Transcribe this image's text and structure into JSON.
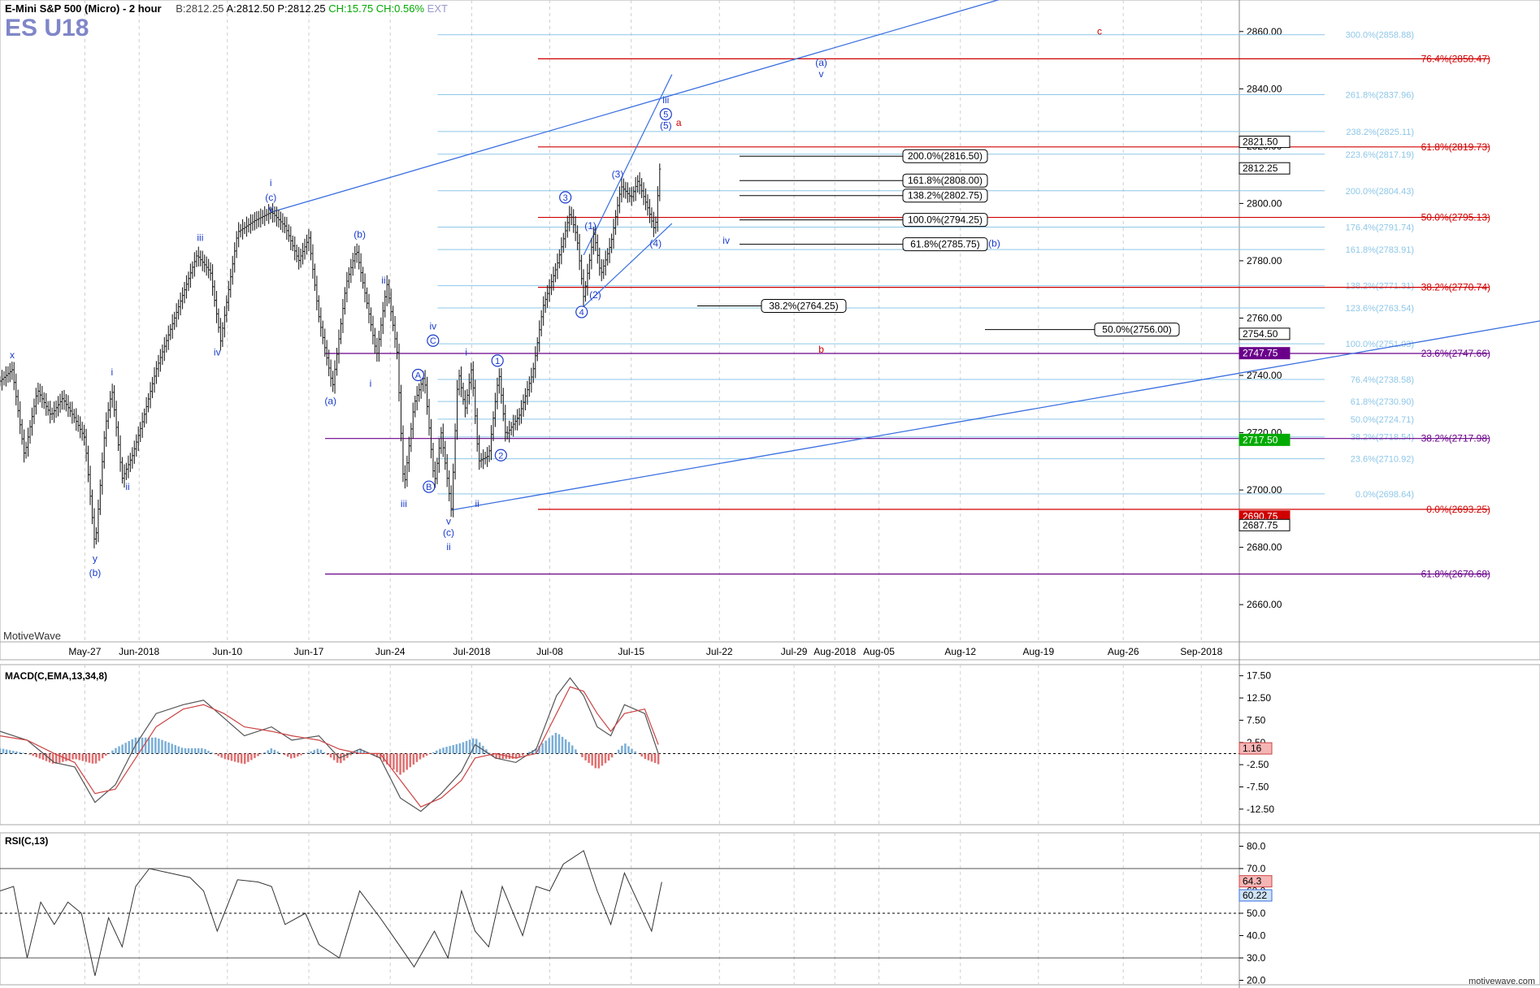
{
  "header": {
    "symbol": "E-Mini S&P 500 (Micro) - 2 hour",
    "bid": "B:2812.25",
    "ask": "A:2812.50",
    "price": "P:2812.25",
    "change": "CH:15.75",
    "change_pct": "CH:0.56%",
    "ext": "EXT",
    "contract": "ES U18"
  },
  "branding": {
    "app": "MotiveWave",
    "watermark": "motivewave.com"
  },
  "colors": {
    "wave": "#1a3ccc",
    "bar": "#222",
    "fib_light": "#8ec7e8",
    "fib_red": "#d00000",
    "fib_purple": "#6a008a",
    "hist_up": "#7aaed6",
    "hist_dn": "#e07070"
  },
  "chart_data": [
    {
      "type": "line",
      "title": "E-Mini S&P 500 (Micro) - 2 hour",
      "ylim": [
        2647,
        2871
      ],
      "y_ticks": [
        2660,
        2680,
        2700,
        2720,
        2740,
        2760,
        2780,
        2800,
        2820,
        2840,
        2860
      ],
      "x_ticks": [
        {
          "label": "May-27",
          "t": 0.125
        },
        {
          "label": "Jun-2018",
          "t": 0.205
        },
        {
          "label": "Jun-10",
          "t": 0.335
        },
        {
          "label": "Jun-17",
          "t": 0.455
        },
        {
          "label": "Jun-24",
          "t": 0.575
        },
        {
          "label": "Jul-2018",
          "t": 0.695
        },
        {
          "label": "Jul-08",
          "t": 0.81
        },
        {
          "label": "Jul-15",
          "t": 0.93
        },
        {
          "label": "Jul-22",
          "t": 1.06
        },
        {
          "label": "Jul-29",
          "t": 1.17
        },
        {
          "label": "Aug-2018",
          "t": 1.23
        },
        {
          "label": "Aug-05",
          "t": 1.295
        },
        {
          "label": "Aug-12",
          "t": 1.415
        },
        {
          "label": "Aug-19",
          "t": 1.53
        },
        {
          "label": "Aug-26",
          "t": 1.655
        },
        {
          "label": "Sep-2018",
          "t": 1.77
        }
      ],
      "price_path": [
        [
          0.0,
          2738
        ],
        [
          0.018,
          2742
        ],
        [
          0.036,
          2712
        ],
        [
          0.055,
          2735
        ],
        [
          0.075,
          2726
        ],
        [
          0.092,
          2732
        ],
        [
          0.11,
          2725
        ],
        [
          0.125,
          2718
        ],
        [
          0.14,
          2680
        ],
        [
          0.155,
          2722
        ],
        [
          0.165,
          2735
        ],
        [
          0.18,
          2704
        ],
        [
          0.195,
          2712
        ],
        [
          0.21,
          2724
        ],
        [
          0.23,
          2742
        ],
        [
          0.26,
          2762
        ],
        [
          0.29,
          2782
        ],
        [
          0.31,
          2776
        ],
        [
          0.325,
          2752
        ],
        [
          0.35,
          2790
        ],
        [
          0.375,
          2794
        ],
        [
          0.4,
          2797
        ],
        [
          0.42,
          2792
        ],
        [
          0.44,
          2780
        ],
        [
          0.455,
          2788
        ],
        [
          0.47,
          2760
        ],
        [
          0.49,
          2736
        ],
        [
          0.51,
          2772
        ],
        [
          0.525,
          2784
        ],
        [
          0.54,
          2766
        ],
        [
          0.555,
          2747
        ],
        [
          0.57,
          2772
        ],
        [
          0.585,
          2748
        ],
        [
          0.595,
          2700
        ],
        [
          0.61,
          2730
        ],
        [
          0.625,
          2740
        ],
        [
          0.64,
          2702
        ],
        [
          0.65,
          2720
        ],
        [
          0.665,
          2693
        ],
        [
          0.675,
          2742
        ],
        [
          0.685,
          2728
        ],
        [
          0.695,
          2743
        ],
        [
          0.705,
          2710
        ],
        [
          0.72,
          2712
        ],
        [
          0.735,
          2741
        ],
        [
          0.745,
          2719
        ],
        [
          0.765,
          2726
        ],
        [
          0.785,
          2741
        ],
        [
          0.8,
          2764
        ],
        [
          0.82,
          2778
        ],
        [
          0.84,
          2797
        ],
        [
          0.85,
          2788
        ],
        [
          0.86,
          2767
        ],
        [
          0.875,
          2790
        ],
        [
          0.885,
          2775
        ],
        [
          0.9,
          2786
        ],
        [
          0.915,
          2806
        ],
        [
          0.93,
          2802
        ],
        [
          0.94,
          2808
        ],
        [
          0.955,
          2798
        ],
        [
          0.965,
          2790
        ],
        [
          0.972,
          2812
        ]
      ],
      "last_price": 2812.25,
      "fib_levels_right": [
        {
          "label": "76.4%(2850.47)",
          "value": 2850.47,
          "color": "red"
        },
        {
          "label": "61.8%(2819.73)",
          "value": 2819.73,
          "color": "red"
        },
        {
          "label": "50.0%(2795.13)",
          "value": 2795.13,
          "color": "red"
        },
        {
          "label": "38.2%(2770.74)",
          "value": 2770.74,
          "color": "red"
        },
        {
          "label": "23.6%(2747.66)",
          "value": 2747.66,
          "color": "purple"
        },
        {
          "label": "38.2%(2717.98)",
          "value": 2717.98,
          "color": "purple"
        },
        {
          "label": "0.0%(2693.25)",
          "value": 2693.25,
          "color": "red"
        },
        {
          "label": "61.8%(2670.68)",
          "value": 2670.68,
          "color": "purple"
        }
      ],
      "fib_levels_light": [
        {
          "label": "300.0%(2858.88)",
          "value": 2858.88
        },
        {
          "label": "261.8%(2837.96)",
          "value": 2837.96
        },
        {
          "label": "238.2%(2825.11)",
          "value": 2825.11
        },
        {
          "label": "223.6%(2817.19)",
          "value": 2817.19
        },
        {
          "label": "200.0%(2804.43)",
          "value": 2804.43
        },
        {
          "label": "176.4%(2791.74)",
          "value": 2791.74
        },
        {
          "label": "161.8%(2783.91)",
          "value": 2783.91
        },
        {
          "label": "138.2%(2771.31)",
          "value": 2771.31
        },
        {
          "label": "123.6%(2763.54)",
          "value": 2763.54
        },
        {
          "label": "100.0%(2751.03)",
          "value": 2751.03
        },
        {
          "label": "76.4%(2738.58)",
          "value": 2738.58
        },
        {
          "label": "61.8%(2730.90)",
          "value": 2730.9
        },
        {
          "label": "50.0%(2724.71)",
          "value": 2724.71
        },
        {
          "label": "38.2%(2718.54)",
          "value": 2718.54
        },
        {
          "label": "23.6%(2710.92)",
          "value": 2710.92
        },
        {
          "label": "0.0%(2698.64)",
          "value": 2698.64
        }
      ],
      "fib_boxes": [
        {
          "label": "200.0%(2816.50)",
          "value": 2816.5
        },
        {
          "label": "161.8%(2808.00)",
          "value": 2808.0
        },
        {
          "label": "138.2%(2802.75)",
          "value": 2802.75
        },
        {
          "label": "100.0%(2794.25)",
          "value": 2794.25
        },
        {
          "label": "61.8%(2785.75)",
          "value": 2785.75
        },
        {
          "label": "38.2%(2764.25)",
          "value": 2764.25
        },
        {
          "label": "50.0%(2756.00)",
          "value": 2756.0
        }
      ],
      "price_badges": [
        {
          "label": "2821.50",
          "value": 2821.5,
          "color": "#000"
        },
        {
          "label": "2812.25",
          "value": 2812.25,
          "color": "#000"
        },
        {
          "label": "2754.50",
          "value": 2754.5,
          "color": "#000"
        },
        {
          "label": "2747.75",
          "value": 2747.75,
          "color": "#6a008a"
        },
        {
          "label": "2717.50",
          "value": 2717.5,
          "color": "#0a0"
        },
        {
          "label": "2690.75",
          "value": 2690.75,
          "color": "#d00000"
        },
        {
          "label": "2687.75",
          "value": 2687.75,
          "color": "#000"
        }
      ],
      "wave_labels": [
        {
          "text": "x",
          "t": 0.018,
          "v": 2746
        },
        {
          "text": "i",
          "t": 0.165,
          "v": 2740
        },
        {
          "text": "ii",
          "t": 0.188,
          "v": 2700
        },
        {
          "text": "y",
          "t": 0.14,
          "v": 2675
        },
        {
          "text": "(b)",
          "t": 0.14,
          "v": 2670
        },
        {
          "text": "iii",
          "t": 0.295,
          "v": 2787
        },
        {
          "text": "iv",
          "t": 0.32,
          "v": 2747
        },
        {
          "text": "i",
          "t": 0.399,
          "v": 2806
        },
        {
          "text": "(c)",
          "t": 0.399,
          "v": 2801
        },
        {
          "text": "v",
          "t": 0.399,
          "v": 2797
        },
        {
          "text": "(b)",
          "t": 0.53,
          "v": 2788
        },
        {
          "text": "ii",
          "t": 0.565,
          "v": 2772
        },
        {
          "text": "(a)",
          "t": 0.487,
          "v": 2730
        },
        {
          "text": "i",
          "t": 0.546,
          "v": 2736
        },
        {
          "text": "iv",
          "t": 0.638,
          "v": 2756
        },
        {
          "text": "C",
          "t": 0.638,
          "v": 2751
        },
        {
          "text": "A",
          "t": 0.616,
          "v": 2739
        },
        {
          "text": "iii",
          "t": 0.595,
          "v": 2694
        },
        {
          "text": "B",
          "t": 0.632,
          "v": 2700
        },
        {
          "text": "v",
          "t": 0.661,
          "v": 2688
        },
        {
          "text": "(c)",
          "t": 0.661,
          "v": 2684
        },
        {
          "text": "ii",
          "t": 0.661,
          "v": 2679
        },
        {
          "text": "i",
          "t": 0.687,
          "v": 2747
        },
        {
          "text": "ii",
          "t": 0.703,
          "v": 2694
        },
        {
          "text": "1",
          "t": 0.733,
          "v": 2744
        },
        {
          "text": "2",
          "t": 0.738,
          "v": 2711
        },
        {
          "text": "3",
          "t": 0.833,
          "v": 2801
        },
        {
          "text": "(1)",
          "t": 0.87,
          "v": 2791
        },
        {
          "text": "(2)",
          "t": 0.877,
          "v": 2767
        },
        {
          "text": "4",
          "t": 0.857,
          "v": 2761
        },
        {
          "text": "(3)",
          "t": 0.91,
          "v": 2809
        },
        {
          "text": "(4)",
          "t": 0.966,
          "v": 2785
        },
        {
          "text": "iii",
          "t": 0.981,
          "v": 2835
        },
        {
          "text": "5",
          "t": 0.981,
          "v": 2830
        },
        {
          "text": "(5)",
          "t": 0.981,
          "v": 2826
        },
        {
          "text": "a",
          "t": 1.0,
          "v": 2827
        },
        {
          "text": "iv",
          "t": 1.07,
          "v": 2786
        },
        {
          "text": "(a)",
          "t": 1.21,
          "v": 2848
        },
        {
          "text": "v",
          "t": 1.21,
          "v": 2844
        },
        {
          "text": "(b)",
          "t": 1.465,
          "v": 2785
        },
        {
          "text": "b",
          "t": 1.21,
          "v": 2748
        },
        {
          "text": "c",
          "t": 1.62,
          "v": 2859
        }
      ]
    },
    {
      "type": "bar",
      "title": "MACD(C,EMA,13,34,8)",
      "ylim": [
        -16,
        20
      ],
      "y_ticks": [
        17.5,
        12.5,
        7.5,
        2.5,
        -2.5,
        -7.5,
        -12.5
      ],
      "last_value": "1.16",
      "macd": [
        [
          0.0,
          5
        ],
        [
          0.04,
          3
        ],
        [
          0.08,
          -2
        ],
        [
          0.11,
          -3
        ],
        [
          0.14,
          -11
        ],
        [
          0.17,
          -7
        ],
        [
          0.2,
          2
        ],
        [
          0.23,
          9
        ],
        [
          0.27,
          11
        ],
        [
          0.3,
          12
        ],
        [
          0.33,
          8
        ],
        [
          0.36,
          4
        ],
        [
          0.4,
          6
        ],
        [
          0.43,
          3
        ],
        [
          0.47,
          4
        ],
        [
          0.5,
          -1
        ],
        [
          0.53,
          1
        ],
        [
          0.56,
          -1
        ],
        [
          0.59,
          -10
        ],
        [
          0.62,
          -13
        ],
        [
          0.65,
          -9
        ],
        [
          0.68,
          -4
        ],
        [
          0.7,
          2
        ],
        [
          0.73,
          -1
        ],
        [
          0.76,
          -2
        ],
        [
          0.79,
          1
        ],
        [
          0.82,
          13
        ],
        [
          0.84,
          17
        ],
        [
          0.86,
          13
        ],
        [
          0.88,
          6
        ],
        [
          0.9,
          4
        ],
        [
          0.92,
          11
        ],
        [
          0.95,
          9
        ],
        [
          0.97,
          0
        ]
      ],
      "signal": [
        [
          0.0,
          4
        ],
        [
          0.04,
          3
        ],
        [
          0.08,
          0
        ],
        [
          0.11,
          -2
        ],
        [
          0.14,
          -9
        ],
        [
          0.17,
          -8
        ],
        [
          0.2,
          -1
        ],
        [
          0.23,
          6
        ],
        [
          0.27,
          10
        ],
        [
          0.3,
          11
        ],
        [
          0.33,
          9
        ],
        [
          0.36,
          6
        ],
        [
          0.4,
          5
        ],
        [
          0.43,
          4
        ],
        [
          0.47,
          3
        ],
        [
          0.5,
          1
        ],
        [
          0.53,
          0
        ],
        [
          0.56,
          0
        ],
        [
          0.59,
          -6
        ],
        [
          0.62,
          -12
        ],
        [
          0.65,
          -10
        ],
        [
          0.68,
          -6
        ],
        [
          0.7,
          -1
        ],
        [
          0.73,
          0
        ],
        [
          0.76,
          -1
        ],
        [
          0.79,
          0
        ],
        [
          0.82,
          9
        ],
        [
          0.84,
          15
        ],
        [
          0.86,
          14
        ],
        [
          0.88,
          9
        ],
        [
          0.9,
          5
        ],
        [
          0.92,
          9
        ],
        [
          0.95,
          10
        ],
        [
          0.97,
          2
        ]
      ]
    },
    {
      "type": "line",
      "title": "RSI(C,13)",
      "ylim": [
        18,
        86
      ],
      "y_ticks": [
        80,
        70,
        60,
        50,
        40,
        30,
        20
      ],
      "badges": [
        "64.3",
        "60.22"
      ],
      "rsi": [
        [
          0.0,
          60
        ],
        [
          0.02,
          62
        ],
        [
          0.04,
          30
        ],
        [
          0.06,
          55
        ],
        [
          0.08,
          45
        ],
        [
          0.1,
          55
        ],
        [
          0.12,
          50
        ],
        [
          0.14,
          22
        ],
        [
          0.16,
          48
        ],
        [
          0.18,
          35
        ],
        [
          0.2,
          62
        ],
        [
          0.22,
          70
        ],
        [
          0.25,
          68
        ],
        [
          0.28,
          66
        ],
        [
          0.3,
          60
        ],
        [
          0.32,
          42
        ],
        [
          0.35,
          65
        ],
        [
          0.38,
          64
        ],
        [
          0.4,
          62
        ],
        [
          0.42,
          45
        ],
        [
          0.45,
          50
        ],
        [
          0.47,
          36
        ],
        [
          0.5,
          30
        ],
        [
          0.53,
          60
        ],
        [
          0.56,
          48
        ],
        [
          0.59,
          35
        ],
        [
          0.61,
          26
        ],
        [
          0.64,
          42
        ],
        [
          0.66,
          30
        ],
        [
          0.68,
          60
        ],
        [
          0.7,
          42
        ],
        [
          0.72,
          35
        ],
        [
          0.74,
          62
        ],
        [
          0.77,
          40
        ],
        [
          0.79,
          62
        ],
        [
          0.81,
          60
        ],
        [
          0.83,
          72
        ],
        [
          0.86,
          78
        ],
        [
          0.88,
          60
        ],
        [
          0.9,
          45
        ],
        [
          0.92,
          68
        ],
        [
          0.94,
          55
        ],
        [
          0.96,
          42
        ],
        [
          0.975,
          64
        ]
      ]
    }
  ]
}
